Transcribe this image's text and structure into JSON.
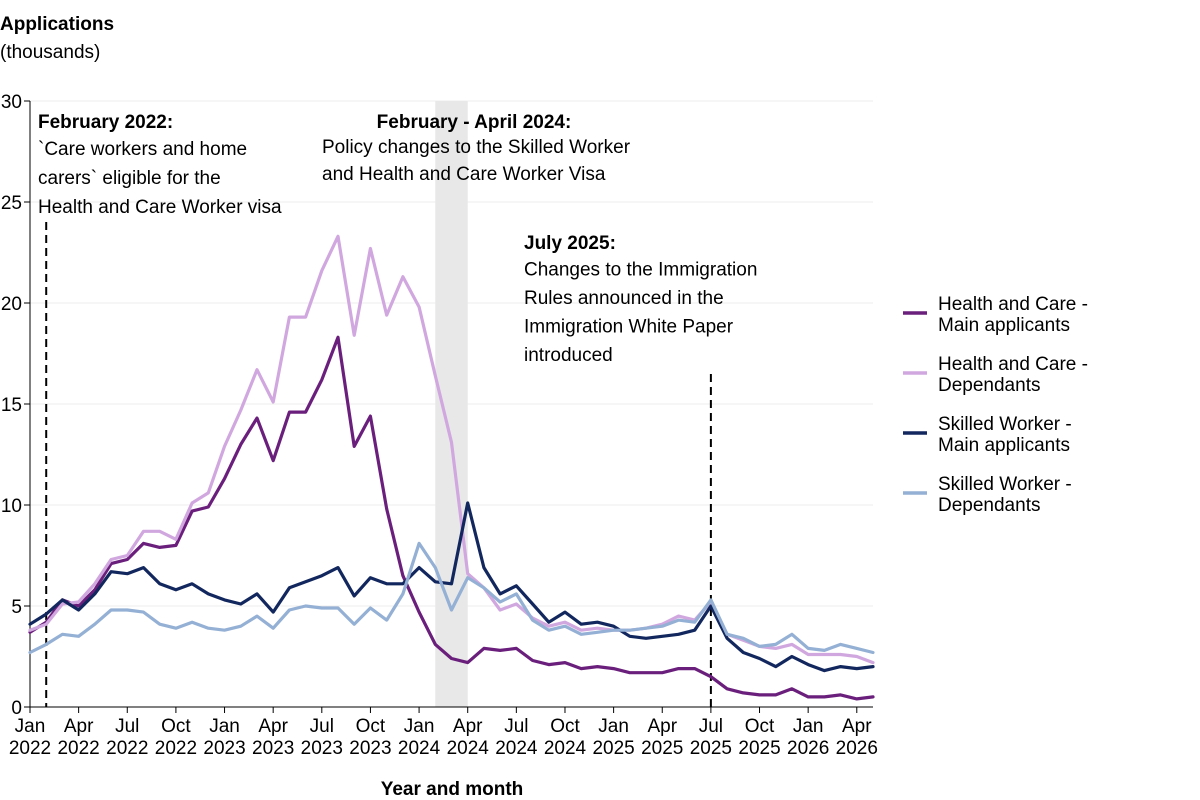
{
  "chart_data": {
    "type": "line",
    "ylabel_title": "Applications",
    "ylabel_subtitle": "(thousands)",
    "xlabel": "Year and month",
    "ylim": [
      0,
      30
    ],
    "yticks": [
      0,
      5,
      10,
      15,
      20,
      25,
      30
    ],
    "x_start": "2022-01",
    "x_end": "2026-05",
    "xticks": [
      {
        "month": "2022-01",
        "line1": "Jan",
        "line2": "2022"
      },
      {
        "month": "2022-04",
        "line1": "Apr",
        "line2": "2022"
      },
      {
        "month": "2022-07",
        "line1": "Jul",
        "line2": "2022"
      },
      {
        "month": "2022-10",
        "line1": "Oct",
        "line2": "2022"
      },
      {
        "month": "2023-01",
        "line1": "Jan",
        "line2": "2023"
      },
      {
        "month": "2023-04",
        "line1": "Apr",
        "line2": "2023"
      },
      {
        "month": "2023-07",
        "line1": "Jul",
        "line2": "2023"
      },
      {
        "month": "2023-10",
        "line1": "Oct",
        "line2": "2023"
      },
      {
        "month": "2024-01",
        "line1": "Jan",
        "line2": "2024"
      },
      {
        "month": "2024-04",
        "line1": "Apr",
        "line2": "2024"
      },
      {
        "month": "2024-07",
        "line1": "Jul",
        "line2": "2024"
      },
      {
        "month": "2024-10",
        "line1": "Oct",
        "line2": "2024"
      },
      {
        "month": "2025-01",
        "line1": "Jan",
        "line2": "2025"
      },
      {
        "month": "2025-04",
        "line1": "Apr",
        "line2": "2025"
      },
      {
        "month": "2025-07",
        "line1": "Jul",
        "line2": "2025"
      },
      {
        "month": "2025-10",
        "line1": "Oct",
        "line2": "2025"
      },
      {
        "month": "2026-01",
        "line1": "Jan",
        "line2": "2026"
      },
      {
        "month": "2026-04",
        "line1": "Apr",
        "line2": "2026"
      }
    ],
    "shaded_period": {
      "start": "2024-02",
      "end": "2024-04"
    },
    "event_lines": [
      "2022-02",
      "2025-07"
    ],
    "annotations": [
      {
        "title": "February 2022:",
        "lines": [
          "`Care workers and home",
          "carers` eligible for the",
          "Health and Care Worker visa"
        ]
      },
      {
        "title": "February - April 2024:",
        "lines": [
          "Policy changes to the Skilled Worker",
          "and Health and Care Worker Visa"
        ]
      },
      {
        "title": "July 2025:",
        "lines": [
          "Changes to the Immigration",
          "Rules announced in the",
          "Immigration White Paper",
          "introduced"
        ]
      }
    ],
    "legend_position": "right",
    "series": [
      {
        "name_line1": "Health and Care -",
        "name_line2": "Main applicants",
        "color": "#6b1f7c",
        "values": [
          3.7,
          4.2,
          5.3,
          5.0,
          5.8,
          7.1,
          7.3,
          8.1,
          7.9,
          8.0,
          9.7,
          9.9,
          11.3,
          13.0,
          14.3,
          12.2,
          14.6,
          14.6,
          16.2,
          18.3,
          12.9,
          14.4,
          9.8,
          6.5,
          4.7,
          3.1,
          2.4,
          2.2,
          2.9,
          2.8,
          2.9,
          2.3,
          2.1,
          2.2,
          1.9,
          2.0,
          1.9,
          1.7,
          1.7,
          1.7,
          1.9,
          1.9,
          1.5,
          0.9,
          0.7,
          0.6,
          0.6,
          0.9,
          0.5,
          0.5,
          0.6,
          0.4,
          0.5
        ]
      },
      {
        "name_line1": "Health and Care -",
        "name_line2": "Dependants",
        "color": "#d1a7df",
        "values": [
          3.8,
          4.1,
          5.1,
          5.2,
          6.1,
          7.3,
          7.5,
          8.7,
          8.7,
          8.3,
          10.1,
          10.6,
          12.9,
          14.7,
          16.7,
          15.1,
          19.3,
          19.3,
          21.6,
          23.3,
          18.4,
          22.7,
          19.4,
          21.3,
          19.8,
          16.4,
          13.1,
          6.6,
          5.9,
          4.8,
          5.1,
          4.4,
          4.0,
          4.2,
          3.8,
          3.9,
          3.8,
          3.8,
          3.9,
          4.1,
          4.5,
          4.3,
          5.2,
          3.6,
          3.3,
          3.0,
          2.9,
          3.1,
          2.6,
          2.6,
          2.6,
          2.5,
          2.2
        ]
      },
      {
        "name_line1": "Skilled Worker -",
        "name_line2": "Main applicants",
        "color": "#12275e",
        "values": [
          4.1,
          4.6,
          5.3,
          4.8,
          5.6,
          6.7,
          6.6,
          6.9,
          6.1,
          5.8,
          6.1,
          5.6,
          5.3,
          5.1,
          5.6,
          4.7,
          5.9,
          6.2,
          6.5,
          6.9,
          5.5,
          6.4,
          6.1,
          6.1,
          6.9,
          6.2,
          6.1,
          10.1,
          6.9,
          5.6,
          6.0,
          5.1,
          4.2,
          4.7,
          4.1,
          4.2,
          4.0,
          3.5,
          3.4,
          3.5,
          3.6,
          3.8,
          5.0,
          3.4,
          2.7,
          2.4,
          2.0,
          2.5,
          2.1,
          1.8,
          2.0,
          1.9,
          2.0
        ]
      },
      {
        "name_line1": "Skilled Worker -",
        "name_line2": "Dependants",
        "color": "#94b0d4",
        "values": [
          2.7,
          3.1,
          3.6,
          3.5,
          4.1,
          4.8,
          4.8,
          4.7,
          4.1,
          3.9,
          4.2,
          3.9,
          3.8,
          4.0,
          4.5,
          3.9,
          4.8,
          5.0,
          4.9,
          4.9,
          4.1,
          4.9,
          4.3,
          5.6,
          8.1,
          6.9,
          4.8,
          6.4,
          5.9,
          5.2,
          5.6,
          4.3,
          3.8,
          4.0,
          3.6,
          3.7,
          3.8,
          3.8,
          3.9,
          4.0,
          4.3,
          4.2,
          5.3,
          3.6,
          3.4,
          3.0,
          3.1,
          3.6,
          2.9,
          2.8,
          3.1,
          2.9,
          2.7
        ]
      }
    ]
  }
}
